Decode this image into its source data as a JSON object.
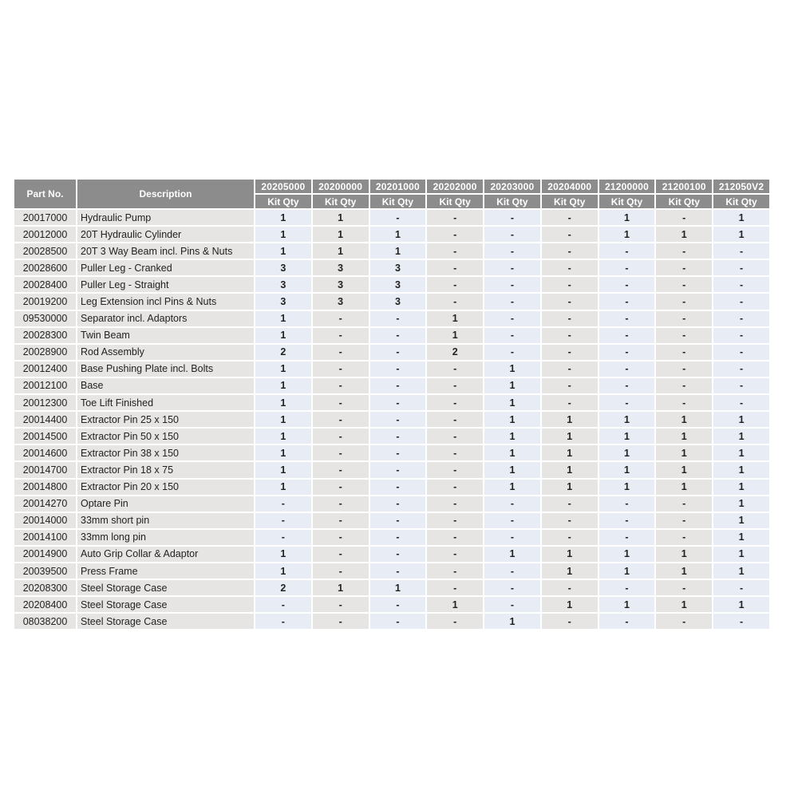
{
  "table": {
    "headers": {
      "part_no": "Part No.",
      "description": "Description",
      "kits": [
        "20205000",
        "20200000",
        "20201000",
        "20202000",
        "20203000",
        "20204000",
        "21200000",
        "21200100",
        "212050V2"
      ],
      "sub_label": "Kit Qty"
    },
    "colors": {
      "header": "#8c8c8c",
      "gray_cell": "#e6e5e3",
      "blue_cell": "#e8edf5"
    },
    "rows": [
      {
        "part": "20017000",
        "desc": "Hydraulic Pump",
        "qty": [
          "1",
          "1",
          "-",
          "-",
          "-",
          "-",
          "1",
          "-",
          "1"
        ]
      },
      {
        "part": "20012000",
        "desc": "20T Hydraulic Cylinder",
        "qty": [
          "1",
          "1",
          "1",
          "-",
          "-",
          "-",
          "1",
          "1",
          "1"
        ]
      },
      {
        "part": "20028500",
        "desc": "20T 3 Way Beam incl. Pins & Nuts",
        "qty": [
          "1",
          "1",
          "1",
          "-",
          "-",
          "-",
          "-",
          "-",
          "-"
        ]
      },
      {
        "part": "20028600",
        "desc": "Puller Leg - Cranked",
        "qty": [
          "3",
          "3",
          "3",
          "-",
          "-",
          "-",
          "-",
          "-",
          "-"
        ]
      },
      {
        "part": "20028400",
        "desc": "Puller Leg - Straight",
        "qty": [
          "3",
          "3",
          "3",
          "-",
          "-",
          "-",
          "-",
          "-",
          "-"
        ]
      },
      {
        "part": "20019200",
        "desc": "Leg Extension incl Pins & Nuts",
        "qty": [
          "3",
          "3",
          "3",
          "-",
          "-",
          "-",
          "-",
          "-",
          "-"
        ]
      },
      {
        "part": "09530000",
        "desc": "Separator incl. Adaptors",
        "qty": [
          "1",
          "-",
          "-",
          "1",
          "-",
          "-",
          "-",
          "-",
          "-"
        ]
      },
      {
        "part": "20028300",
        "desc": "Twin Beam",
        "qty": [
          "1",
          "-",
          "-",
          "1",
          "-",
          "-",
          "-",
          "-",
          "-"
        ]
      },
      {
        "part": "20028900",
        "desc": "Rod Assembly",
        "qty": [
          "2",
          "-",
          "-",
          "2",
          "-",
          "-",
          "-",
          "-",
          "-"
        ]
      },
      {
        "part": "20012400",
        "desc": "Base Pushing Plate incl. Bolts",
        "qty": [
          "1",
          "-",
          "-",
          "-",
          "1",
          "-",
          "-",
          "-",
          "-"
        ]
      },
      {
        "part": "20012100",
        "desc": "Base",
        "qty": [
          "1",
          "-",
          "-",
          "-",
          "1",
          "-",
          "-",
          "-",
          "-"
        ]
      },
      {
        "part": "20012300",
        "desc": "Toe Lift Finished",
        "qty": [
          "1",
          "-",
          "-",
          "-",
          "1",
          "-",
          "-",
          "-",
          "-"
        ]
      },
      {
        "part": "20014400",
        "desc": "Extractor Pin 25 x 150",
        "qty": [
          "1",
          "-",
          "-",
          "-",
          "1",
          "1",
          "1",
          "1",
          "1"
        ]
      },
      {
        "part": "20014500",
        "desc": "Extractor Pin 50 x 150",
        "qty": [
          "1",
          "-",
          "-",
          "-",
          "1",
          "1",
          "1",
          "1",
          "1"
        ]
      },
      {
        "part": "20014600",
        "desc": "Extractor Pin 38 x 150",
        "qty": [
          "1",
          "-",
          "-",
          "-",
          "1",
          "1",
          "1",
          "1",
          "1"
        ]
      },
      {
        "part": "20014700",
        "desc": "Extractor Pin 18 x 75",
        "qty": [
          "1",
          "-",
          "-",
          "-",
          "1",
          "1",
          "1",
          "1",
          "1"
        ]
      },
      {
        "part": "20014800",
        "desc": "Extractor Pin 20 x 150",
        "qty": [
          "1",
          "-",
          "-",
          "-",
          "1",
          "1",
          "1",
          "1",
          "1"
        ]
      },
      {
        "part": "20014270",
        "desc": "Optare Pin",
        "qty": [
          "-",
          "-",
          "-",
          "-",
          "-",
          "-",
          "-",
          "-",
          "1"
        ]
      },
      {
        "part": "20014000",
        "desc": "33mm short pin",
        "qty": [
          "-",
          "-",
          "-",
          "-",
          "-",
          "-",
          "-",
          "-",
          "1"
        ]
      },
      {
        "part": "20014100",
        "desc": "33mm long pin",
        "qty": [
          "-",
          "-",
          "-",
          "-",
          "-",
          "-",
          "-",
          "-",
          "1"
        ]
      },
      {
        "part": "20014900",
        "desc": "Auto Grip Collar & Adaptor",
        "qty": [
          "1",
          "-",
          "-",
          "-",
          "1",
          "1",
          "1",
          "1",
          "1"
        ]
      },
      {
        "part": "20039500",
        "desc": "Press Frame",
        "qty": [
          "1",
          "-",
          "-",
          "-",
          "-",
          "1",
          "1",
          "1",
          "1"
        ]
      },
      {
        "part": "20208300",
        "desc": "Steel Storage Case",
        "qty": [
          "2",
          "1",
          "1",
          "-",
          "-",
          "-",
          "-",
          "-",
          "-"
        ]
      },
      {
        "part": "20208400",
        "desc": "Steel Storage Case",
        "qty": [
          "-",
          "-",
          "-",
          "1",
          "-",
          "1",
          "1",
          "1",
          "1"
        ]
      },
      {
        "part": "08038200",
        "desc": "Steel Storage Case",
        "qty": [
          "-",
          "-",
          "-",
          "-",
          "1",
          "-",
          "-",
          "-",
          "-"
        ]
      }
    ]
  }
}
